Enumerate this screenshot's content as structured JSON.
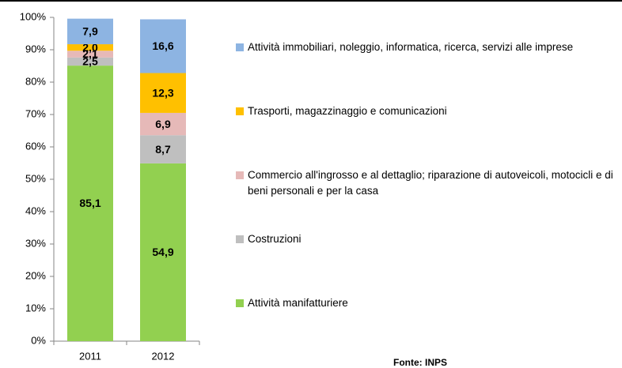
{
  "chart_data": {
    "type": "stacked-bar",
    "categories": [
      "2011",
      "2012"
    ],
    "series": [
      {
        "name": "Attività manifatturiere",
        "color": "#92d050",
        "values": [
          85.1,
          54.9
        ],
        "value_labels": [
          "85,1",
          "54,9"
        ]
      },
      {
        "name": "Costruzioni",
        "color": "#bfbfbf",
        "values": [
          2.5,
          8.7
        ],
        "value_labels": [
          "2,5",
          "8,7"
        ]
      },
      {
        "name": "Commercio all'ingrosso e al dettaglio; riparazione di autoveicoli, motocicli e di beni personali e per la casa",
        "color": "#e6b9b8",
        "values": [
          2.1,
          6.9
        ],
        "value_labels": [
          "2,1",
          "6,9"
        ]
      },
      {
        "name": "Trasporti, magazzinaggio e comunicazioni",
        "color": "#ffc000",
        "values": [
          2.0,
          12.3
        ],
        "value_labels": [
          "2,0",
          "12,3"
        ]
      },
      {
        "name": "Attività immobiliari, noleggio, informatica, ricerca, servizi alle imprese",
        "color": "#8db4e2",
        "values": [
          7.9,
          16.6
        ],
        "value_labels": [
          "7,9",
          "16,6"
        ]
      }
    ],
    "ylim": [
      0,
      100
    ],
    "yticks": [
      {
        "value": 0,
        "label": "0%"
      },
      {
        "value": 10,
        "label": "10%"
      },
      {
        "value": 20,
        "label": "20%"
      },
      {
        "value": 30,
        "label": "30%"
      },
      {
        "value": 40,
        "label": "40%"
      },
      {
        "value": 50,
        "label": "50%"
      },
      {
        "value": 60,
        "label": "60%"
      },
      {
        "value": 70,
        "label": "70%"
      },
      {
        "value": 80,
        "label": "80%"
      },
      {
        "value": 90,
        "label": "90%"
      },
      {
        "value": 100,
        "label": "100%"
      }
    ],
    "legend": "right",
    "source": "Fonte: INPS"
  }
}
